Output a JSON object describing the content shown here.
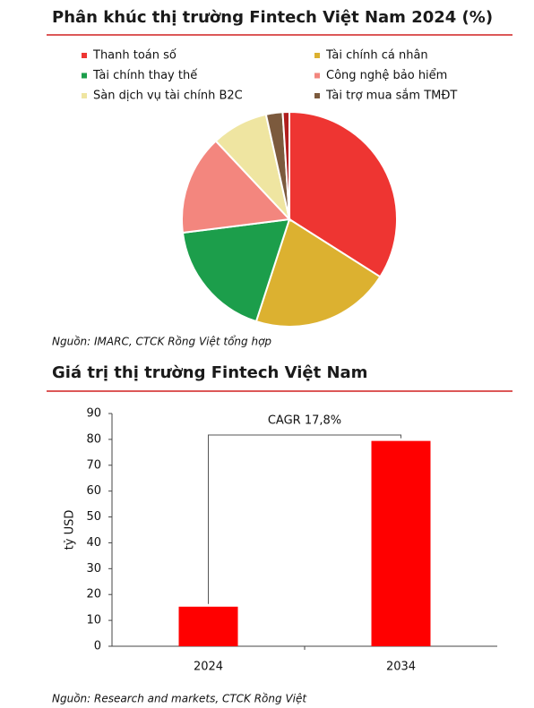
{
  "chart_data": [
    {
      "type": "pie",
      "title": "Phân khúc thị trường Fintech Việt Nam 2024 (%)",
      "categories": [
        "Thanh toán số",
        "Tài chính cá nhân",
        "Tài chính thay thế",
        "Công nghệ bảo hiểm",
        "Sàn dịch vụ tài chính B2C",
        "Tài trợ mua sắm TMĐT",
        null
      ],
      "values": [
        34,
        21,
        18,
        15,
        8.5,
        2.5,
        1
      ],
      "colors": [
        "#ee3532",
        "#dcb130",
        "#1c9e4b",
        "#f3867e",
        "#efe5a1",
        "#7c5a3d",
        "#b01e1e"
      ],
      "source": "Nguồn: IMARC, CTCK Rồng Việt tổng hợp"
    },
    {
      "type": "bar",
      "title": "Giá trị thị trường Fintech Việt Nam",
      "categories": [
        "2024",
        "2034"
      ],
      "values": [
        15.3,
        79.4
      ],
      "color": "#ff0000",
      "ylabel": "tỷ USD",
      "ylim": [
        0,
        90
      ],
      "yticks": [
        0,
        10,
        20,
        30,
        40,
        50,
        60,
        70,
        80,
        90
      ],
      "annotation": "CAGR 17,8%",
      "source": "Nguồn: Research and markets, CTCK Rồng Việt"
    }
  ]
}
